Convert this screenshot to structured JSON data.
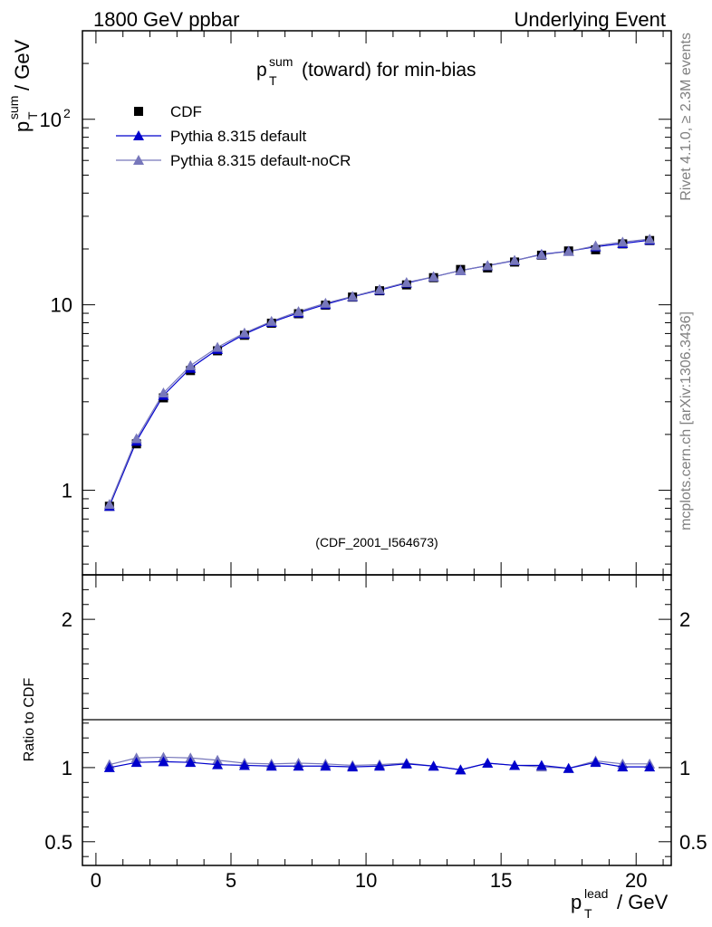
{
  "header": {
    "left": "1800 GeV ppbar",
    "right": "Underlying Event"
  },
  "side_labels": {
    "rivet": "Rivet 4.1.0, ≥ 2.3M events",
    "mcplots": "mcplots.cern.ch [arXiv:1306.3436]"
  },
  "chart_data": [
    {
      "type": "scatter",
      "panel": "main",
      "title": "(toward) for min-bias",
      "title_symbol": {
        "base": "p",
        "sup": "sum",
        "sub": "T"
      },
      "ylabel": "/ GeV",
      "ylabel_symbol": {
        "base": "p",
        "sup": "sum",
        "sub": "T"
      },
      "yscale": "log",
      "ylim": [
        0.35,
        300
      ],
      "xlim": [
        -0.5,
        21.3
      ],
      "y_ticks": [
        {
          "value": 1,
          "label": "1"
        },
        {
          "value": 10,
          "label": "10"
        },
        {
          "value": 100,
          "label": "10",
          "sup": "2"
        }
      ],
      "watermark": "(CDF_2001_I564673)",
      "legend": {
        "position": "top-left",
        "entries": [
          "CDF",
          "Pythia 8.315 default",
          "Pythia 8.315 default-noCR"
        ]
      },
      "x": [
        0.5,
        1.5,
        2.5,
        3.5,
        4.5,
        5.5,
        6.5,
        7.5,
        8.5,
        9.5,
        10.5,
        11.5,
        12.5,
        13.5,
        14.5,
        15.5,
        16.5,
        17.5,
        18.5,
        19.5,
        20.5
      ],
      "series": [
        {
          "name": "CDF",
          "style": "data",
          "color": "#000000",
          "values": [
            0.82,
            1.78,
            3.15,
            4.42,
            5.65,
            6.85,
            7.95,
            8.95,
            9.95,
            11.0,
            11.9,
            12.8,
            14.0,
            15.5,
            15.8,
            17.0,
            18.5,
            19.5,
            19.8,
            21.3,
            22.2
          ]
        },
        {
          "name": "Pythia 8.315 default",
          "style": "line",
          "color": "#0000cc",
          "values": [
            0.82,
            1.84,
            3.25,
            4.55,
            5.75,
            6.95,
            8.05,
            9.05,
            10.05,
            11.05,
            12.0,
            13.1,
            14.15,
            15.3,
            16.25,
            17.3,
            18.7,
            19.45,
            20.55,
            21.4,
            22.3
          ]
        },
        {
          "name": "Pythia 8.315 default-noCR",
          "style": "line",
          "color": "#7777bb",
          "values": [
            0.84,
            1.9,
            3.35,
            4.7,
            5.9,
            7.05,
            8.15,
            9.2,
            10.2,
            11.1,
            12.1,
            13.2,
            14.15,
            15.3,
            16.3,
            17.35,
            18.6,
            19.4,
            20.8,
            21.8,
            22.6
          ]
        }
      ]
    },
    {
      "type": "scatter",
      "panel": "ratio",
      "ylabel": "Ratio to CDF",
      "ylim": [
        0.34,
        2.3
      ],
      "y_ticks": [
        {
          "value": 0.5,
          "label": "0.5"
        },
        {
          "value": 1,
          "label": "1"
        },
        {
          "value": 2,
          "label": "2"
        }
      ],
      "xlim": [
        -0.5,
        21.3
      ],
      "x_ticks": [
        0,
        5,
        10,
        15,
        20
      ],
      "xlabel": "/ GeV",
      "xlabel_symbol": {
        "base": "p",
        "sup": "lead",
        "sub": "T"
      },
      "x": [
        0.5,
        1.5,
        2.5,
        3.5,
        4.5,
        5.5,
        6.5,
        7.5,
        8.5,
        9.5,
        10.5,
        11.5,
        12.5,
        13.5,
        14.5,
        15.5,
        16.5,
        17.5,
        18.5,
        19.5,
        20.5
      ],
      "series": [
        {
          "name": "Pythia 8.315 default",
          "color": "#0000cc",
          "values": [
            1.0,
            1.035,
            1.04,
            1.035,
            1.02,
            1.015,
            1.01,
            1.01,
            1.01,
            1.005,
            1.01,
            1.025,
            1.01,
            0.985,
            1.03,
            1.015,
            1.015,
            0.995,
            1.035,
            1.005,
            1.005
          ]
        },
        {
          "name": "Pythia 8.315 default-noCR",
          "color": "#7777bb",
          "values": [
            1.02,
            1.065,
            1.07,
            1.065,
            1.05,
            1.03,
            1.025,
            1.03,
            1.025,
            1.015,
            1.02,
            1.03,
            1.01,
            0.985,
            1.03,
            1.015,
            1.005,
            0.995,
            1.045,
            1.025,
            1.025
          ]
        }
      ]
    }
  ]
}
